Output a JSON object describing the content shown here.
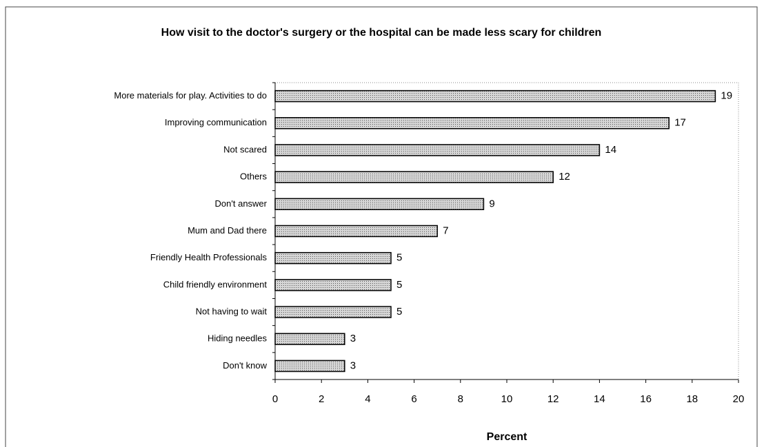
{
  "chart_data": {
    "type": "bar",
    "orientation": "horizontal",
    "title": "How visit to the doctor's surgery or the hospital can be made less scary for children",
    "categories": [
      "More materials for play. Activities to do",
      "Improving communication",
      "Not scared",
      "Others",
      "Don't answer",
      "Mum and Dad there",
      "Friendly Health Professionals",
      "Child friendly environment",
      "Not having to wait",
      "Hiding needles",
      "Don't know"
    ],
    "values": [
      19,
      17,
      14,
      12,
      9,
      7,
      5,
      5,
      5,
      3,
      3
    ],
    "color": "#bdbdbd",
    "xlabel": "Percent",
    "xlim": [
      0,
      20
    ],
    "xticks": [
      0,
      2,
      4,
      6,
      8,
      10,
      12,
      14,
      16,
      18,
      20
    ]
  }
}
